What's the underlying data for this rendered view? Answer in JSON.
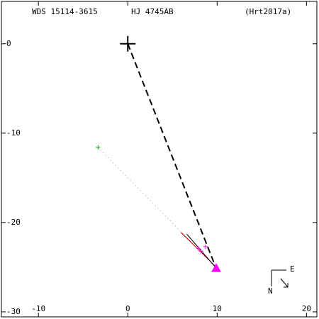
{
  "chart_data": {
    "type": "scatter",
    "labels": [
      "WDS 15114-3615",
      "HJ 4745AB",
      "(Hrt2017a)"
    ],
    "annotations": [
      "E",
      "N"
    ],
    "xlim": [
      -14.3,
      21.4
    ],
    "ylim": [
      4.9,
      -30.8
    ],
    "xticks": [
      -10,
      0,
      10,
      20
    ],
    "yticks": [
      0,
      -10,
      -20,
      -30
    ],
    "series": [
      {
        "color": "#000000",
        "marker": "plus-large",
        "x": [
          0
        ],
        "values": [
          0
        ]
      },
      {
        "color": "#000000",
        "line": "dashed",
        "x": [
          0,
          9.84
        ],
        "values": [
          0,
          -25.0
        ]
      },
      {
        "color": "#999999",
        "line": "dotted",
        "x": [
          -3.33,
          9.84
        ],
        "values": [
          -11.59,
          -25.0
        ]
      },
      {
        "color": "#00a000",
        "marker": "plus",
        "x": [
          -3.33
        ],
        "values": [
          -11.59
        ]
      },
      {
        "color": "#c00000",
        "line": "solid",
        "x": [
          5.95,
          10.3
        ],
        "values": [
          -21.1,
          -25.4
        ]
      },
      {
        "color": "#000000",
        "line": "solid",
        "x": [
          6.6,
          9.9
        ],
        "values": [
          -21.3,
          -25.1
        ]
      },
      {
        "color": "#ff00ff",
        "marker": "plus",
        "x": [
          7.9,
          8.7,
          8.2
        ],
        "values": [
          -22.9,
          -22.7,
          -23.2
        ]
      },
      {
        "color": "#ff00ff",
        "marker": "triangle",
        "x": [
          9.9
        ],
        "values": [
          -25.1
        ]
      }
    ]
  }
}
